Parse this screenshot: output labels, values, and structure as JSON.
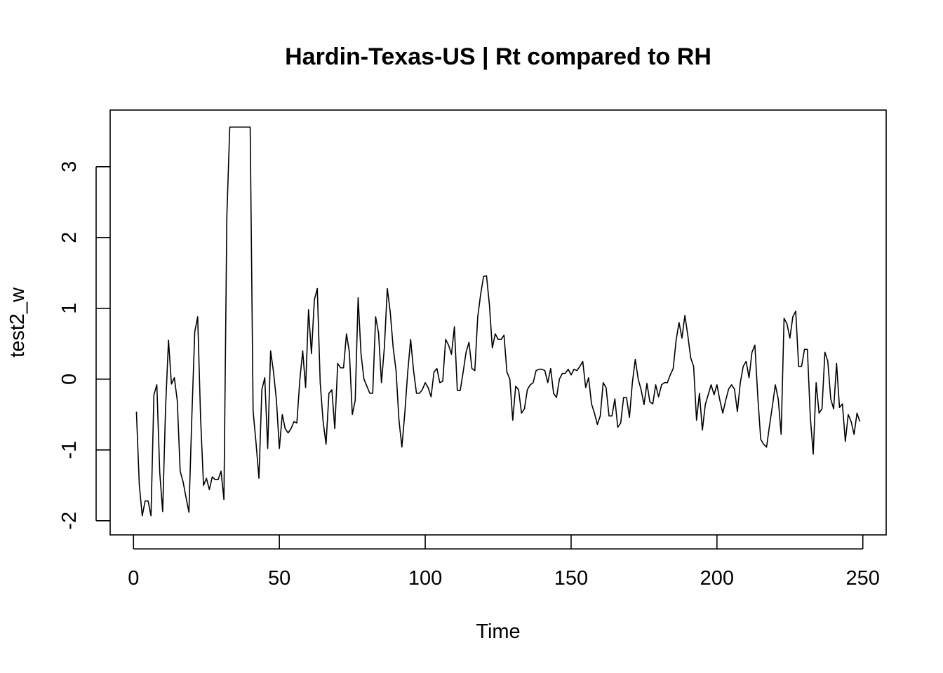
{
  "chart_data": {
    "type": "line",
    "title": "Hardin-Texas-US | Rt compared to RH",
    "xlabel": "Time",
    "ylabel": "test2_w",
    "xlim": [
      -8,
      258
    ],
    "ylim": [
      -2.2,
      3.8
    ],
    "x_ticks": [
      0,
      50,
      100,
      150,
      200,
      250
    ],
    "y_ticks": [
      -2,
      -1,
      0,
      1,
      2,
      3
    ],
    "grid": false,
    "legend": "none",
    "line_color": "#000000",
    "x_start": 1,
    "series": [
      {
        "values": [
          -0.46,
          -1.5,
          -1.93,
          -1.72,
          -1.72,
          -1.93,
          -0.22,
          -0.08,
          -1.32,
          -1.87,
          -0.4,
          0.55,
          -0.07,
          0.02,
          -0.3,
          -1.3,
          -1.45,
          -1.67,
          -1.88,
          -0.53,
          0.67,
          0.88,
          -0.55,
          -1.5,
          -1.4,
          -1.56,
          -1.38,
          -1.42,
          -1.42,
          -1.3,
          -1.7,
          2.3,
          3.56,
          3.56,
          3.56,
          3.56,
          3.56,
          3.56,
          3.56,
          3.56,
          -0.45,
          -0.9,
          -1.4,
          -0.15,
          0.02,
          -0.98,
          0.4,
          0.1,
          -0.3,
          -0.98,
          -0.5,
          -0.7,
          -0.76,
          -0.7,
          -0.6,
          -0.62,
          -0.02,
          0.4,
          -0.12,
          0.98,
          0.36,
          1.12,
          1.28,
          -0.05,
          -0.6,
          -0.92,
          -0.2,
          -0.15,
          -0.7,
          0.22,
          0.16,
          0.16,
          0.64,
          0.38,
          -0.5,
          -0.3,
          1.15,
          0.35,
          0.0,
          -0.1,
          -0.2,
          -0.2,
          0.88,
          0.65,
          -0.05,
          0.45,
          1.28,
          0.95,
          0.45,
          0.12,
          -0.58,
          -0.96,
          -0.48,
          0.1,
          0.56,
          0.12,
          -0.2,
          -0.2,
          -0.15,
          -0.05,
          -0.12,
          -0.25,
          0.1,
          0.15,
          -0.05,
          -0.03,
          0.56,
          0.48,
          0.35,
          0.74,
          -0.16,
          -0.16,
          0.1,
          0.38,
          0.52,
          0.15,
          0.12,
          0.88,
          1.2,
          1.45,
          1.46,
          1.05,
          0.44,
          0.64,
          0.56,
          0.56,
          0.62,
          0.1,
          0.0,
          -0.58,
          -0.1,
          -0.15,
          -0.48,
          -0.42,
          -0.15,
          -0.08,
          -0.05,
          0.12,
          0.14,
          0.14,
          0.12,
          -0.05,
          0.15,
          -0.2,
          -0.26,
          0.0,
          0.08,
          0.08,
          0.14,
          0.06,
          0.14,
          0.12,
          0.18,
          0.25,
          -0.12,
          0.02,
          -0.35,
          -0.48,
          -0.64,
          -0.52,
          -0.05,
          -0.12,
          -0.52,
          -0.52,
          -0.28,
          -0.68,
          -0.62,
          -0.26,
          -0.26,
          -0.54,
          -0.05,
          0.28,
          0.0,
          -0.15,
          -0.36,
          -0.06,
          -0.32,
          -0.35,
          -0.08,
          -0.25,
          -0.08,
          -0.05,
          -0.05,
          0.06,
          0.15,
          0.55,
          0.8,
          0.58,
          0.9,
          0.62,
          0.3,
          0.18,
          -0.58,
          -0.2,
          -0.72,
          -0.36,
          -0.22,
          -0.08,
          -0.22,
          -0.08,
          -0.3,
          -0.48,
          -0.3,
          -0.14,
          -0.08,
          -0.14,
          -0.46,
          -0.05,
          0.18,
          0.25,
          0.02,
          0.38,
          0.48,
          -0.25,
          -0.85,
          -0.92,
          -0.96,
          -0.66,
          -0.38,
          -0.08,
          -0.28,
          -0.78,
          0.86,
          0.78,
          0.58,
          0.88,
          0.96,
          0.18,
          0.18,
          0.42,
          0.42,
          -0.54,
          -1.06,
          -0.05,
          -0.48,
          -0.42,
          0.38,
          0.25,
          -0.28,
          -0.42,
          0.22,
          -0.4,
          -0.35,
          -0.88,
          -0.5,
          -0.6,
          -0.78,
          -0.48,
          -0.6
        ]
      }
    ]
  }
}
